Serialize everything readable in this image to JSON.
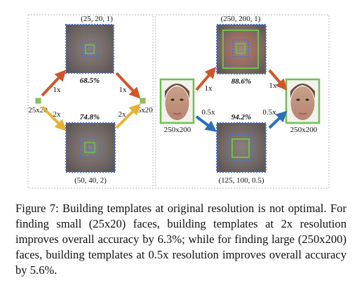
{
  "left_panel": {
    "top_label": "(25, 20, 1)",
    "top_pct": "68.5%",
    "bottom_label": "(50, 40, 2)",
    "bottom_pct": "74.8%",
    "input_label": "25x20",
    "output_label": "25x20",
    "scale_top_in": "1x",
    "scale_top_out": "1x",
    "scale_bottom_in": "2x",
    "scale_bottom_out": "2x"
  },
  "right_panel": {
    "top_label": "(250, 200, 1)",
    "top_pct": "88.6%",
    "bottom_label": "(125, 100, 0.5)",
    "bottom_pct": "94.2%",
    "input_label": "250x200",
    "output_label": "250x200",
    "scale_top_in": "1x",
    "scale_top_out": "1x",
    "scale_bottom_in": "0.5x",
    "scale_bottom_out": "0.5x"
  },
  "colors": {
    "arrow_1x": "#d2552a",
    "arrow_2x": "#e7b230",
    "arrow_half": "#2a6fb8",
    "face_box": "#6cc24a",
    "dots": "#4a73d0",
    "template_bg": "#7a6f6c"
  },
  "caption": "Figure 7: Building templates at original resolution is not optimal. For finding small (25x20) faces, building templates at 2x resolution improves overall accuracy by 6.3%; while for finding large (250x200) faces, building templates at 0.5x resolution improves overall accuracy by 5.6%."
}
